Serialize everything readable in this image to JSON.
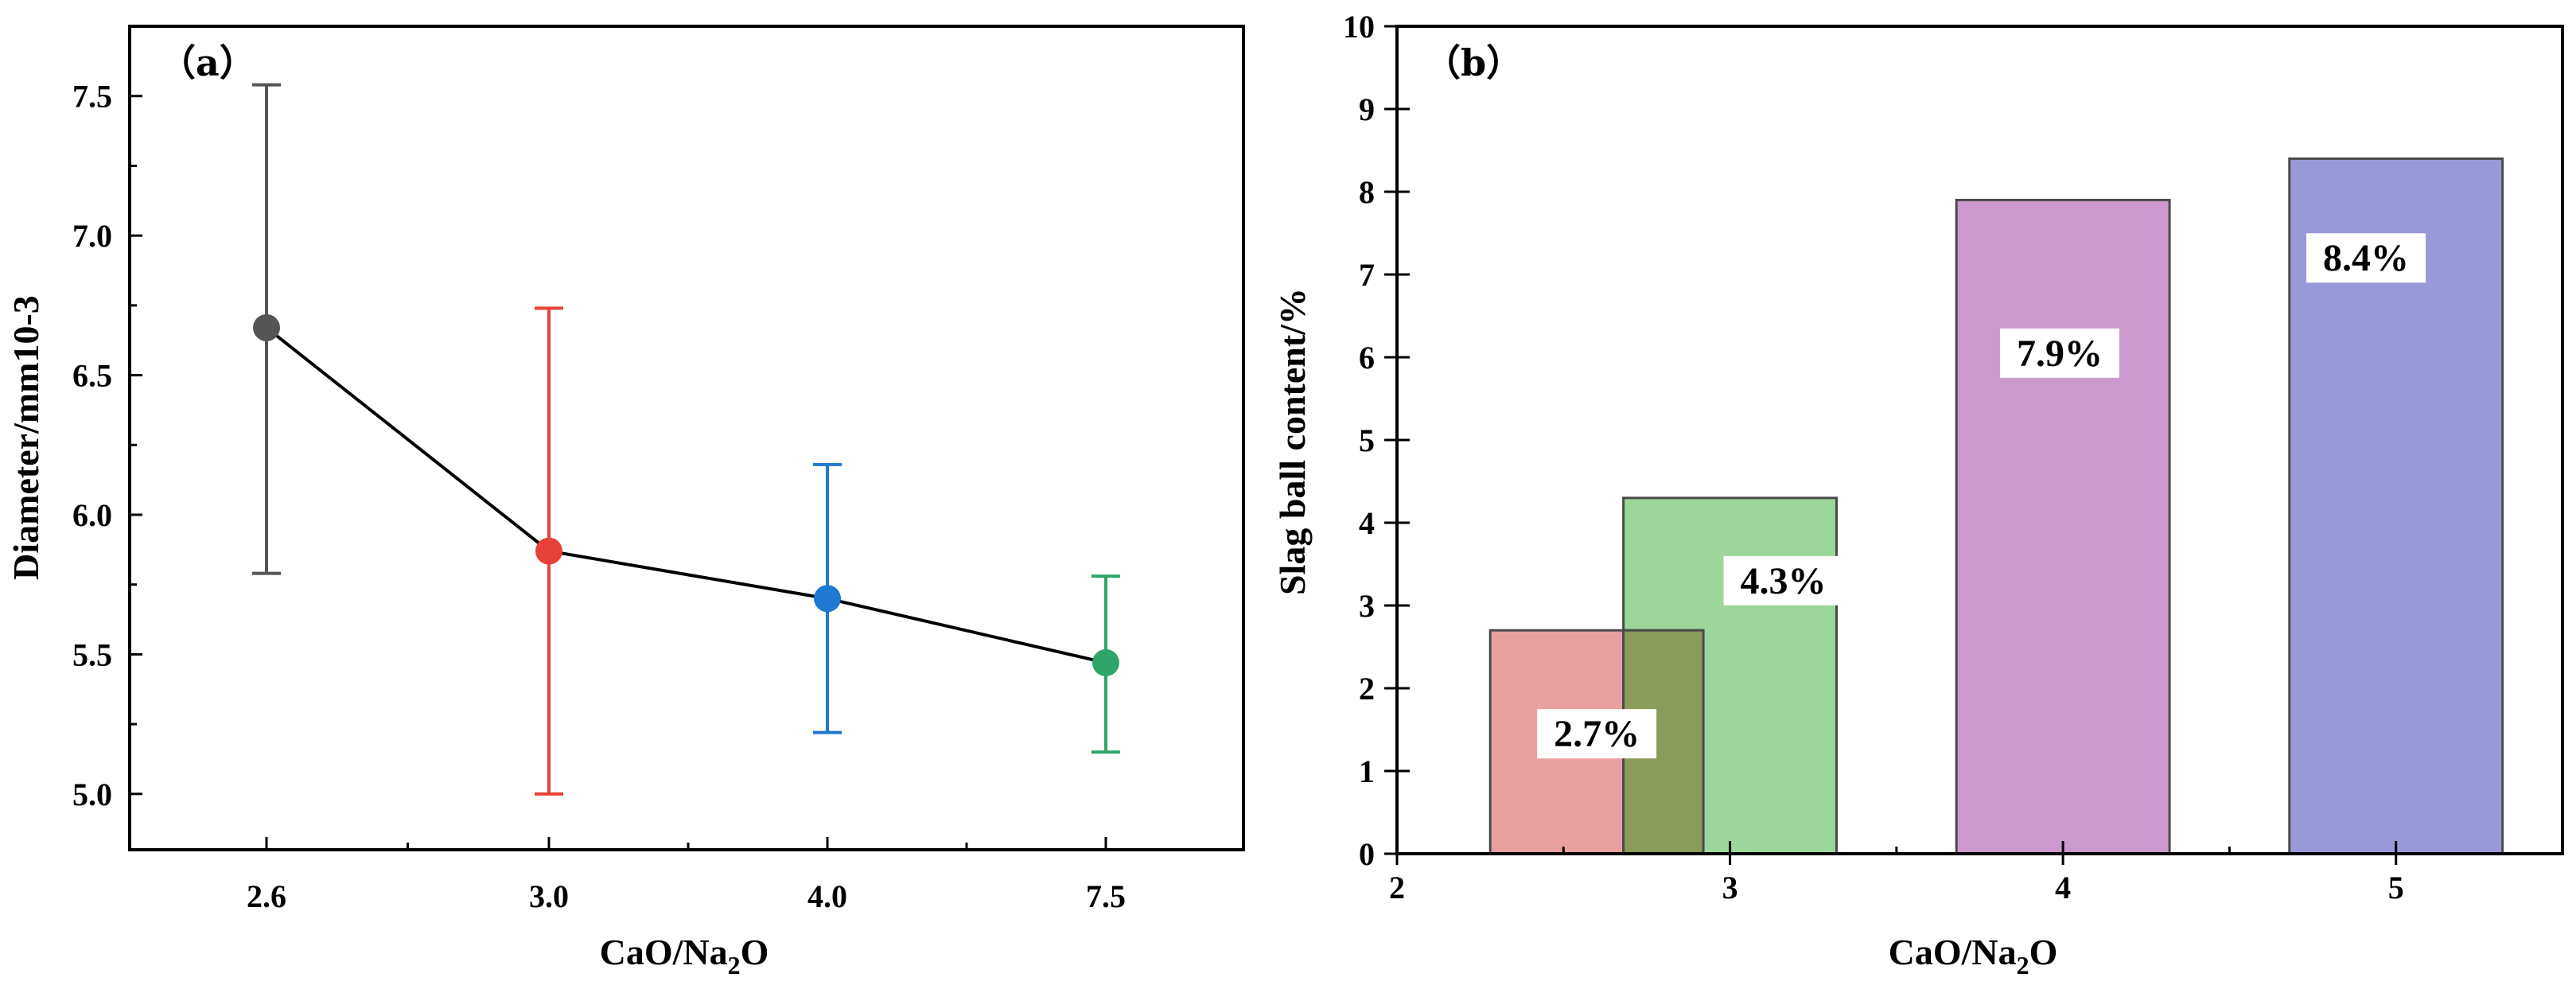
{
  "chart_data": [
    {
      "type": "line",
      "panel_label": "（a）",
      "xlabel": {
        "base": "CaO/Na",
        "sub": "2",
        "end": "O"
      },
      "ylabel": "Diameter/mm10-3",
      "ylim": [
        4.8,
        7.75
      ],
      "yticks": [
        5.0,
        5.5,
        6.0,
        6.5,
        7.0,
        7.5
      ],
      "yticklabels": [
        "5.0",
        "5.5",
        "6.0",
        "6.5",
        "7.0",
        "7.5"
      ],
      "categories": [
        "2.6",
        "3.0",
        "4.0",
        "7.5"
      ],
      "points": [
        {
          "x": "2.6",
          "y": 6.67,
          "err_low": 5.79,
          "err_high": 7.54,
          "color": "#555555"
        },
        {
          "x": "3.0",
          "y": 5.87,
          "err_low": 5.0,
          "err_high": 6.74,
          "color": "#e8413a"
        },
        {
          "x": "4.0",
          "y": 5.7,
          "err_low": 5.22,
          "err_high": 6.18,
          "color": "#1f78d1"
        },
        {
          "x": "7.5",
          "y": 5.47,
          "err_low": 5.15,
          "err_high": 5.78,
          "color": "#2ea56a"
        }
      ],
      "line_color": "#000000"
    },
    {
      "type": "bar",
      "panel_label": "（b）",
      "xlabel": {
        "base": "CaO/Na",
        "sub": "2",
        "end": "O"
      },
      "ylabel": "Slag ball content/%",
      "ylim": [
        0,
        10
      ],
      "yticks": [
        0,
        1,
        2,
        3,
        4,
        5,
        6,
        7,
        8,
        9,
        10
      ],
      "yticklabels": [
        "0",
        "1",
        "2",
        "3",
        "4",
        "5",
        "6",
        "7",
        "8",
        "9",
        "10"
      ],
      "xlim": [
        2,
        5.5
      ],
      "xticks": [
        2,
        3,
        4,
        5
      ],
      "xticklabels": [
        "2",
        "3",
        "4",
        "5"
      ],
      "bars": [
        {
          "x0": 2.28,
          "x1": 2.92,
          "value": 2.7,
          "label": "2.7%",
          "color": "#e8a0a0",
          "label_x": 2.6,
          "label_y": 1.45
        },
        {
          "x0": 2.68,
          "x1": 3.32,
          "value": 4.3,
          "label": "4.3%",
          "color": "#9cd69a",
          "label_x": 3.16,
          "label_y": 3.3
        },
        {
          "x0": 3.68,
          "x1": 4.32,
          "value": 7.9,
          "label": "7.9%",
          "color": "#cc99cc",
          "label_x": 3.99,
          "label_y": 6.05
        },
        {
          "x0": 4.68,
          "x1": 5.32,
          "value": 8.4,
          "label": "8.4%",
          "color": "#9999d9",
          "label_x": 4.91,
          "label_y": 7.2
        }
      ],
      "overlap_color": "#8a9c5a"
    }
  ]
}
